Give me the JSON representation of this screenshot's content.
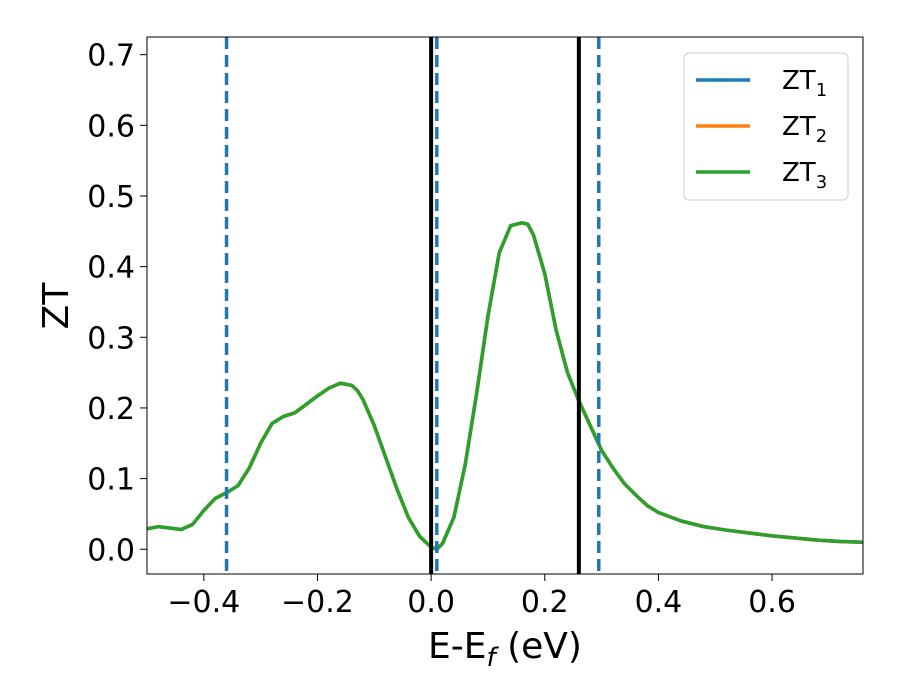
{
  "chart_data": {
    "type": "line",
    "xlabel": "E-E",
    "xlabel_sub": "f",
    "xlabel_unit": " (eV)",
    "ylabel": "ZT",
    "xlim": [
      -0.5,
      0.76
    ],
    "ylim": [
      -0.035,
      0.725
    ],
    "x_ticks": [
      -0.4,
      -0.2,
      0.0,
      0.2,
      0.4,
      0.6
    ],
    "x_tick_labels": [
      "−0.4",
      "−0.2",
      "0.0",
      "0.2",
      "0.4",
      "0.6"
    ],
    "y_ticks": [
      0.0,
      0.1,
      0.2,
      0.3,
      0.4,
      0.5,
      0.6,
      0.7
    ],
    "y_tick_labels": [
      "0.0",
      "0.1",
      "0.2",
      "0.3",
      "0.4",
      "0.5",
      "0.6",
      "0.7"
    ],
    "grid": false,
    "legend_position": "top-right",
    "series": [
      {
        "name": "ZT",
        "name_sub": "1",
        "color": "#1f77b4",
        "x": [
          -0.5,
          -0.48,
          -0.46,
          -0.44,
          -0.42,
          -0.4,
          -0.38,
          -0.36,
          -0.34,
          -0.32,
          -0.3,
          -0.28,
          -0.26,
          -0.24,
          -0.22,
          -0.2,
          -0.18,
          -0.16,
          -0.14,
          -0.13,
          -0.12,
          -0.1,
          -0.08,
          -0.06,
          -0.04,
          -0.02,
          0.0,
          0.01,
          0.02,
          0.04,
          0.06,
          0.08,
          0.1,
          0.12,
          0.14,
          0.16,
          0.17,
          0.18,
          0.2,
          0.22,
          0.24,
          0.26,
          0.28,
          0.3,
          0.32,
          0.34,
          0.36,
          0.38,
          0.4,
          0.44,
          0.48,
          0.52,
          0.56,
          0.6,
          0.64,
          0.68,
          0.72,
          0.76
        ],
        "y": [
          0.029,
          0.032,
          0.03,
          0.028,
          0.035,
          0.055,
          0.072,
          0.08,
          0.09,
          0.115,
          0.15,
          0.178,
          0.188,
          0.193,
          0.205,
          0.217,
          0.228,
          0.235,
          0.232,
          0.225,
          0.212,
          0.175,
          0.13,
          0.085,
          0.045,
          0.018,
          0.003,
          0.0,
          0.008,
          0.045,
          0.12,
          0.22,
          0.33,
          0.42,
          0.458,
          0.462,
          0.46,
          0.445,
          0.39,
          0.31,
          0.25,
          0.21,
          0.175,
          0.14,
          0.115,
          0.093,
          0.077,
          0.062,
          0.052,
          0.04,
          0.032,
          0.027,
          0.023,
          0.019,
          0.016,
          0.013,
          0.011,
          0.01
        ]
      },
      {
        "name": "ZT",
        "name_sub": "2",
        "color": "#ff7f0e",
        "x": [
          -0.5,
          -0.48,
          -0.46,
          -0.44,
          -0.42,
          -0.4,
          -0.38,
          -0.36,
          -0.34,
          -0.32,
          -0.3,
          -0.28,
          -0.26,
          -0.24,
          -0.22,
          -0.2,
          -0.18,
          -0.16,
          -0.14,
          -0.13,
          -0.12,
          -0.1,
          -0.08,
          -0.06,
          -0.04,
          -0.02,
          0.0,
          0.01,
          0.02,
          0.04,
          0.06,
          0.08,
          0.1,
          0.12,
          0.14,
          0.16,
          0.17,
          0.18,
          0.2,
          0.22,
          0.24,
          0.26,
          0.28,
          0.3,
          0.32,
          0.34,
          0.36,
          0.38,
          0.4,
          0.44,
          0.48,
          0.52,
          0.56,
          0.6,
          0.64,
          0.68,
          0.72,
          0.76
        ],
        "y": [
          0.029,
          0.032,
          0.03,
          0.028,
          0.035,
          0.055,
          0.072,
          0.08,
          0.09,
          0.115,
          0.15,
          0.178,
          0.188,
          0.193,
          0.205,
          0.217,
          0.228,
          0.235,
          0.232,
          0.225,
          0.212,
          0.175,
          0.13,
          0.085,
          0.045,
          0.018,
          0.003,
          0.0,
          0.008,
          0.045,
          0.12,
          0.22,
          0.33,
          0.42,
          0.458,
          0.462,
          0.46,
          0.445,
          0.39,
          0.31,
          0.25,
          0.21,
          0.175,
          0.14,
          0.115,
          0.093,
          0.077,
          0.062,
          0.052,
          0.04,
          0.032,
          0.027,
          0.023,
          0.019,
          0.016,
          0.013,
          0.011,
          0.01
        ]
      },
      {
        "name": "ZT",
        "name_sub": "3",
        "color": "#2ca02c",
        "x": [
          -0.5,
          -0.48,
          -0.46,
          -0.44,
          -0.42,
          -0.4,
          -0.38,
          -0.36,
          -0.34,
          -0.32,
          -0.3,
          -0.28,
          -0.26,
          -0.24,
          -0.22,
          -0.2,
          -0.18,
          -0.16,
          -0.14,
          -0.13,
          -0.12,
          -0.1,
          -0.08,
          -0.06,
          -0.04,
          -0.02,
          0.0,
          0.01,
          0.02,
          0.04,
          0.06,
          0.08,
          0.1,
          0.12,
          0.14,
          0.16,
          0.17,
          0.18,
          0.2,
          0.22,
          0.24,
          0.26,
          0.28,
          0.3,
          0.32,
          0.34,
          0.36,
          0.38,
          0.4,
          0.44,
          0.48,
          0.52,
          0.56,
          0.6,
          0.64,
          0.68,
          0.72,
          0.76
        ],
        "y": [
          0.029,
          0.032,
          0.03,
          0.028,
          0.035,
          0.055,
          0.072,
          0.08,
          0.09,
          0.115,
          0.15,
          0.178,
          0.188,
          0.193,
          0.205,
          0.217,
          0.228,
          0.235,
          0.232,
          0.225,
          0.212,
          0.175,
          0.13,
          0.085,
          0.045,
          0.018,
          0.003,
          0.0,
          0.008,
          0.045,
          0.12,
          0.22,
          0.33,
          0.42,
          0.458,
          0.462,
          0.46,
          0.445,
          0.39,
          0.31,
          0.25,
          0.21,
          0.175,
          0.14,
          0.115,
          0.093,
          0.077,
          0.062,
          0.052,
          0.04,
          0.032,
          0.027,
          0.023,
          0.019,
          0.016,
          0.013,
          0.011,
          0.01
        ]
      }
    ],
    "vertical_lines": [
      {
        "x": -0.36,
        "style": "dashed",
        "color": "#1f77b4"
      },
      {
        "x": 0.0,
        "style": "solid",
        "color": "#000000"
      },
      {
        "x": 0.01,
        "style": "dashed",
        "color": "#1f77b4"
      },
      {
        "x": 0.26,
        "style": "solid",
        "color": "#000000"
      },
      {
        "x": 0.295,
        "style": "dashed",
        "color": "#1f77b4"
      }
    ]
  }
}
